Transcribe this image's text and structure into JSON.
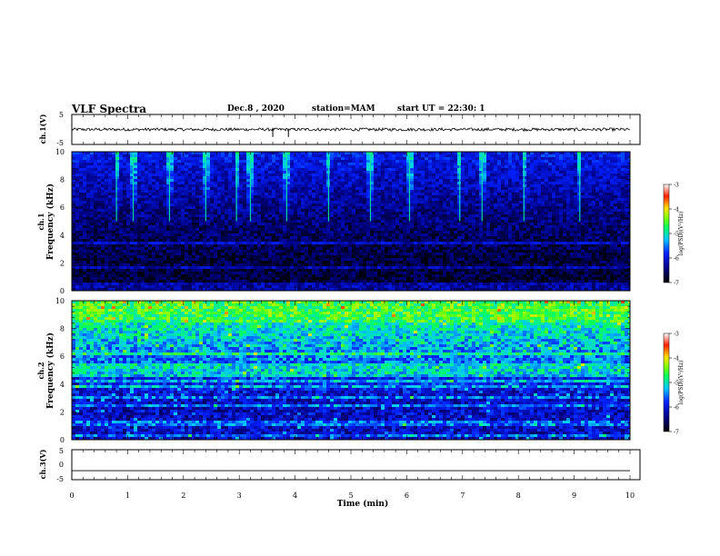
{
  "header": {
    "title": "VLF Spectra",
    "date": "Dec.8 , 2020",
    "station": "station=MAM",
    "start": "start UT =  22:30: 1"
  },
  "chart_data": [
    {
      "type": "line",
      "panel": "ch1-waveform",
      "ylabel": "ch.1(V)",
      "ylim": [
        -5,
        5
      ],
      "yticks": [
        "5",
        "-5"
      ],
      "xlim": [
        0,
        10
      ],
      "baseline_value": 0,
      "noise_amplitude": 0.5,
      "spike_times_min": [
        3.6,
        3.88
      ]
    },
    {
      "type": "heatmap",
      "panel": "ch1-spectrogram",
      "ylabel_line1": "ch.1",
      "ylabel_line2": "Frequency (kHz)",
      "ylim": [
        0,
        10
      ],
      "yticks": [
        "0",
        "2",
        "4",
        "6",
        "8",
        "10"
      ],
      "xlim": [
        0,
        10
      ],
      "colorbar": {
        "label": "log(PSD)(V²/Hz)",
        "range": [
          -7,
          -3
        ],
        "ticks": [
          "-3",
          "-4",
          "-5",
          "-6",
          "-7"
        ]
      },
      "bursts_time_min": [
        0.8,
        1.1,
        1.75,
        2.4,
        2.95,
        3.2,
        3.85,
        4.6,
        5.35,
        6.05,
        6.95,
        7.35,
        8.1,
        9.1
      ],
      "band_freqs_khz": [
        0.2,
        0.45,
        1.6,
        3.4
      ]
    },
    {
      "type": "heatmap",
      "panel": "ch2-spectrogram",
      "ylabel_line1": "ch.2",
      "ylabel_line2": "Frequency (kHz)",
      "ylim": [
        0,
        10
      ],
      "yticks": [
        "0",
        "2",
        "4",
        "6",
        "8",
        "10"
      ],
      "xlim": [
        0,
        10
      ],
      "colorbar": {
        "label": "log(PSD)(V²/Hz)",
        "range": [
          -7,
          -3
        ],
        "ticks": [
          "-3",
          "-4",
          "-5",
          "-6",
          "-7"
        ]
      },
      "band_freqs_khz": [
        0.3,
        1.0,
        1.2,
        2.5,
        3.1,
        3.9,
        4.2,
        4.6,
        4.9,
        5.3,
        6.2
      ]
    },
    {
      "type": "line",
      "panel": "ch3-waveform",
      "ylabel": "ch.3(V)",
      "ylim": [
        -5,
        5
      ],
      "yticks": [
        "5",
        "0",
        "-5"
      ],
      "xlim": [
        0,
        10
      ],
      "xlabel": "Time (min)",
      "xticks": [
        "0",
        "1",
        "2",
        "3",
        "4",
        "5",
        "6",
        "7",
        "8",
        "9",
        "10"
      ],
      "baseline_value": -2
    }
  ]
}
